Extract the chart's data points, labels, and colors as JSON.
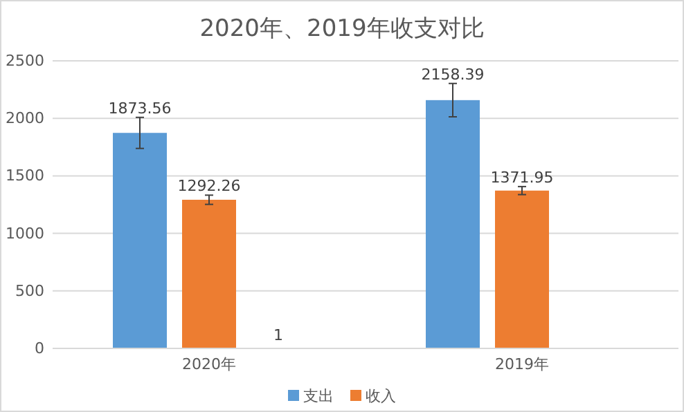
{
  "chart_data": {
    "type": "bar",
    "title": "2020年、2019年收支对比",
    "categories": [
      "2020年",
      "2019年"
    ],
    "series": [
      {
        "name": "支出",
        "color": "#5b9bd5",
        "values": [
          1873.56,
          2158.39
        ],
        "errors": [
          135,
          145
        ]
      },
      {
        "name": "收入",
        "color": "#ed7d31",
        "values": [
          1292.26,
          1371.95
        ],
        "errors": [
          40,
          35
        ]
      },
      {
        "color": "#a5a5a5",
        "values": [
          1,
          null
        ]
      }
    ],
    "ylim": [
      0,
      2500
    ],
    "yticks": [
      0,
      500,
      1000,
      1500,
      2000,
      2500
    ],
    "grid": "y",
    "legend": "bottom",
    "data_labels": true
  }
}
